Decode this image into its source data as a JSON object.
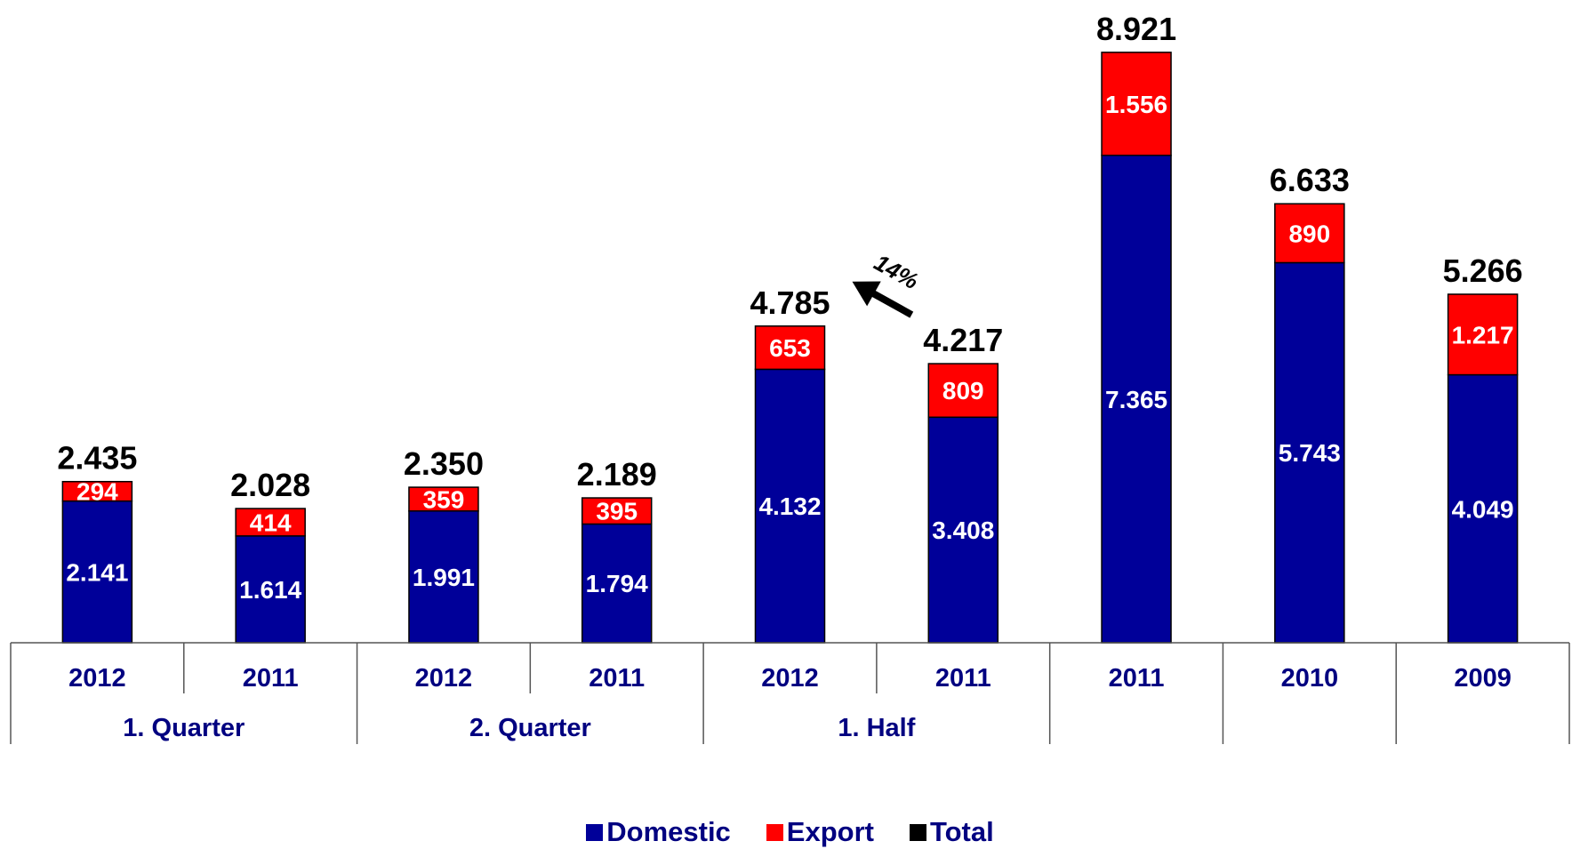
{
  "chart_data": {
    "type": "bar",
    "stacked": true,
    "categories": [
      "2012",
      "2011",
      "2012",
      "2011",
      "2012",
      "2011",
      "2011",
      "2010",
      "2009"
    ],
    "groups": [
      {
        "label": "1. Quarter",
        "span": 2
      },
      {
        "label": "2. Quarter",
        "span": 2
      },
      {
        "label": "1. Half",
        "span": 2
      },
      {
        "label": "",
        "span": 1
      },
      {
        "label": "",
        "span": 1
      },
      {
        "label": "",
        "span": 1
      }
    ],
    "series": [
      {
        "name": "Domestic",
        "color": "#000099",
        "values": [
          2141,
          1614,
          1991,
          1794,
          4132,
          3408,
          7365,
          5743,
          4049
        ],
        "labels": [
          "2.141",
          "1.614",
          "1.991",
          "1.794",
          "4.132",
          "3.408",
          "7.365",
          "5.743",
          "4.049"
        ]
      },
      {
        "name": "Export",
        "color": "#ff0000",
        "values": [
          294,
          414,
          359,
          395,
          653,
          809,
          1556,
          890,
          1217
        ],
        "labels": [
          "294",
          "414",
          "359",
          "395",
          "653",
          "809",
          "1.556",
          "890",
          "1.217"
        ]
      }
    ],
    "totals": {
      "name": "Total",
      "color": "#000000",
      "values": [
        2435,
        2028,
        2350,
        2189,
        4785,
        4217,
        8921,
        6633,
        5266
      ],
      "labels": [
        "2.435",
        "2.028",
        "2.350",
        "2.189",
        "4.785",
        "4.217",
        "8.921",
        "6.633",
        "5.266"
      ]
    },
    "annotation": {
      "text": "14%",
      "from_category": 5,
      "to_category": 4
    },
    "ylim": [
      0,
      9000
    ],
    "grid": false,
    "legend_position": "bottom"
  }
}
